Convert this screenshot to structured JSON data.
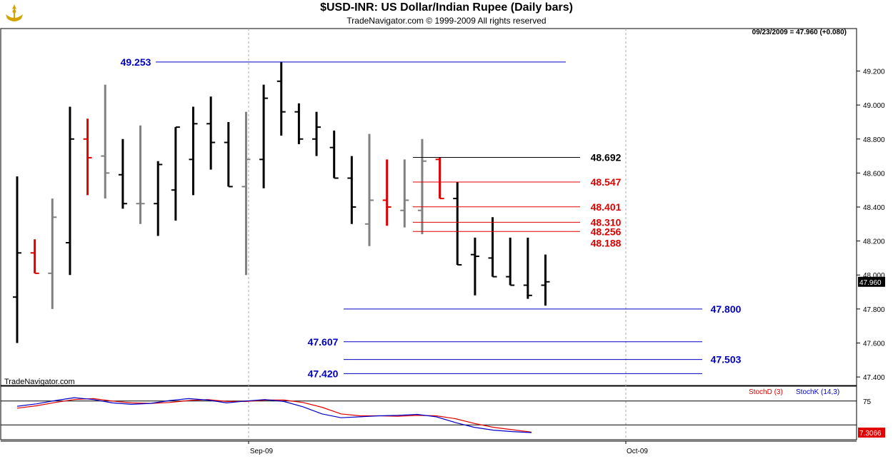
{
  "header": {
    "title": "$USD-INR:  US Dollar/Indian Rupee  (Daily bars)",
    "subtitle": "TradeNavigator.com © 1999-2009 All rights reserved"
  },
  "watermark": "TradeNavigator.com",
  "colors": {
    "black_bar": "#000000",
    "gray_bar": "#808080",
    "red_bar": "#e00000",
    "blue_level": "#0000c8",
    "red_level": "#e00000",
    "stoch_d": "#e00000",
    "stoch_k": "#0000c8",
    "logo": "#d4a300"
  },
  "chart_data": [
    {
      "type": "ohlc",
      "title": "$USD-INR:  US Dollar/Indian Rupee  (Daily bars)",
      "last_info": "09/23/2009 = 47.960 (+0.080)",
      "last_price_label": "47.960",
      "ylim": [
        47.35,
        49.45
      ],
      "y_ticks": [
        "49.200",
        "49.000",
        "48.800",
        "48.600",
        "48.400",
        "48.200",
        "48.000",
        "47.800",
        "47.600",
        "47.400"
      ],
      "x_ticks": [
        "Sep-09",
        "Oct-09"
      ],
      "bars": [
        {
          "o": 47.87,
          "h": 48.58,
          "l": 47.6,
          "c": 48.13,
          "color": "black"
        },
        {
          "o": 48.13,
          "h": 48.21,
          "l": 48.01,
          "c": 48.01,
          "color": "red"
        },
        {
          "o": 48.01,
          "h": 48.45,
          "l": 47.8,
          "c": 48.34,
          "color": "gray"
        },
        {
          "o": 48.19,
          "h": 48.99,
          "l": 48.0,
          "c": 48.8,
          "color": "black"
        },
        {
          "o": 48.8,
          "h": 48.92,
          "l": 48.47,
          "c": 48.69,
          "color": "red"
        },
        {
          "o": 48.7,
          "h": 49.12,
          "l": 48.45,
          "c": 48.6,
          "color": "gray"
        },
        {
          "o": 48.59,
          "h": 48.8,
          "l": 48.39,
          "c": 48.42,
          "color": "black"
        },
        {
          "o": 48.42,
          "h": 48.88,
          "l": 48.3,
          "c": 48.42,
          "color": "gray"
        },
        {
          "o": 48.42,
          "h": 48.67,
          "l": 48.23,
          "c": 48.65,
          "color": "black"
        },
        {
          "o": 48.5,
          "h": 48.87,
          "l": 48.32,
          "c": 48.87,
          "color": "black"
        },
        {
          "o": 48.68,
          "h": 48.99,
          "l": 48.47,
          "c": 48.89,
          "color": "black"
        },
        {
          "o": 48.89,
          "h": 49.05,
          "l": 48.62,
          "c": 48.78,
          "color": "black"
        },
        {
          "o": 48.78,
          "h": 48.9,
          "l": 48.52,
          "c": 48.52,
          "color": "black"
        },
        {
          "o": 48.52,
          "h": 48.96,
          "l": 48.0,
          "c": 48.68,
          "color": "gray"
        },
        {
          "o": 48.68,
          "h": 49.12,
          "l": 48.51,
          "c": 49.04,
          "color": "black"
        },
        {
          "o": 49.14,
          "h": 49.253,
          "l": 48.82,
          "c": 48.96,
          "color": "black"
        },
        {
          "o": 48.96,
          "h": 49.01,
          "l": 48.77,
          "c": 48.8,
          "color": "black"
        },
        {
          "o": 48.8,
          "h": 48.96,
          "l": 48.7,
          "c": 48.87,
          "color": "black"
        },
        {
          "o": 48.75,
          "h": 48.85,
          "l": 48.57,
          "c": 48.57,
          "color": "black"
        },
        {
          "o": 48.57,
          "h": 48.7,
          "l": 48.3,
          "c": 48.4,
          "color": "black"
        },
        {
          "o": 48.3,
          "h": 48.83,
          "l": 48.17,
          "c": 48.44,
          "color": "gray"
        },
        {
          "o": 48.44,
          "h": 48.68,
          "l": 48.29,
          "c": 48.4,
          "color": "red"
        },
        {
          "o": 48.38,
          "h": 48.68,
          "l": 48.28,
          "c": 48.44,
          "color": "gray"
        },
        {
          "o": 48.38,
          "h": 48.8,
          "l": 48.24,
          "c": 48.67,
          "color": "gray"
        },
        {
          "o": 48.68,
          "h": 48.69,
          "l": 48.45,
          "c": 48.45,
          "color": "red"
        },
        {
          "o": 48.45,
          "h": 48.547,
          "l": 48.06,
          "c": 48.06,
          "color": "black"
        },
        {
          "o": 48.12,
          "h": 48.22,
          "l": 47.88,
          "c": 48.11,
          "color": "black"
        },
        {
          "o": 48.1,
          "h": 48.34,
          "l": 47.99,
          "c": 47.99,
          "color": "black"
        },
        {
          "o": 47.99,
          "h": 48.22,
          "l": 47.94,
          "c": 47.94,
          "color": "black"
        },
        {
          "o": 47.94,
          "h": 48.22,
          "l": 47.86,
          "c": 47.88,
          "color": "black"
        },
        {
          "o": 47.94,
          "h": 48.12,
          "l": 47.82,
          "c": 47.96,
          "color": "black"
        }
      ],
      "levels": [
        {
          "value": 49.253,
          "label": "49.253",
          "color": "blue",
          "label_side": "left",
          "span": [
            7,
            30
          ]
        },
        {
          "value": 48.692,
          "label": "48.692",
          "color": "black",
          "label_side": "right",
          "span": [
            23,
            31
          ]
        },
        {
          "value": 48.547,
          "label": "48.547",
          "color": "red",
          "label_side": "right",
          "span": [
            23,
            31
          ]
        },
        {
          "value": 48.401,
          "label": "48.401",
          "color": "red",
          "label_side": "right",
          "span": [
            23,
            31
          ]
        },
        {
          "value": 48.31,
          "label": "48.310",
          "color": "red",
          "label_side": "right",
          "span": [
            23,
            31
          ]
        },
        {
          "value": 48.256,
          "label": "48.256",
          "color": "red",
          "label_side": "right",
          "span": [
            23,
            31
          ]
        },
        {
          "value": 48.188,
          "label": "48.188",
          "color": "red",
          "label_side": "right_only",
          "span": null
        },
        {
          "value": 47.8,
          "label": "47.800",
          "color": "blue",
          "label_side": "right",
          "span": [
            18.5,
            38.5
          ]
        },
        {
          "value": 47.607,
          "label": "47.607",
          "color": "blue",
          "label_side": "left",
          "span": [
            18.5,
            38.5
          ]
        },
        {
          "value": 47.503,
          "label": "47.503",
          "color": "blue",
          "label_side": "right",
          "span": [
            18.5,
            38.5
          ]
        },
        {
          "value": 47.42,
          "label": "47.420",
          "color": "blue",
          "label_side": "left",
          "span": [
            18.5,
            38.5
          ]
        }
      ]
    },
    {
      "type": "line",
      "title": "StochD (3)  StochK (14,3)",
      "ylim": [
        0,
        100
      ],
      "y_ticks": [
        "75"
      ],
      "last_value_label": "7.3066",
      "reference_lines": [
        75,
        25
      ],
      "series": [
        {
          "name": "StochD (3)",
          "color": "red",
          "values": [
            60,
            65,
            72,
            78,
            80,
            75,
            71,
            70,
            72,
            76,
            78,
            74,
            74,
            77,
            77,
            72,
            62,
            48,
            44,
            44,
            43,
            45,
            44,
            38,
            28,
            20,
            15,
            10
          ]
        },
        {
          "name": "StochK (14,3)",
          "color": "blue",
          "values": [
            64,
            69,
            76,
            82,
            78,
            71,
            68,
            70,
            76,
            80,
            77,
            71,
            75,
            78,
            74,
            63,
            48,
            40,
            42,
            44,
            45,
            47,
            42,
            30,
            20,
            14,
            11,
            9
          ]
        }
      ]
    }
  ]
}
